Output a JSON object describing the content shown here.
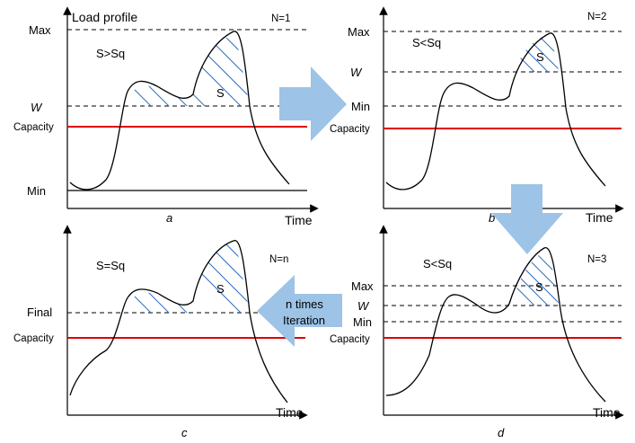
{
  "panels": {
    "a": {
      "caption": "a",
      "iteration": "N=1",
      "title": "Load profile",
      "relation": "S>Sq",
      "area_label": "S",
      "axis_x": "Time",
      "y_labels": {
        "max": "Max",
        "w": "W",
        "capacity": "Capacity",
        "min": "Min"
      }
    },
    "b": {
      "caption": "b",
      "iteration": "N=2",
      "relation": "S<Sq",
      "area_label": "S",
      "axis_x": "Time",
      "y_labels": {
        "max": "Max",
        "w": "W",
        "min": "Min",
        "capacity": "Capacity"
      }
    },
    "c": {
      "caption": "c",
      "iteration": "N=n",
      "relation": "S=Sq",
      "area_label": "S",
      "axis_x": "Time",
      "y_labels": {
        "final": "Final",
        "capacity": "Capacity"
      }
    },
    "d": {
      "caption": "d",
      "iteration": "N=3",
      "relation": "S<Sq",
      "area_label": "S",
      "axis_x": "Time",
      "y_labels": {
        "max": "Max",
        "w": "W",
        "min": "Min",
        "capacity": "Capacity"
      }
    }
  },
  "iteration_arrow": {
    "line1": "n times",
    "line2": "Iteration"
  },
  "colors": {
    "capacity_line": "#e00000",
    "hatch": "#2f6fbf",
    "arrow_fill": "#9dc3e6"
  }
}
